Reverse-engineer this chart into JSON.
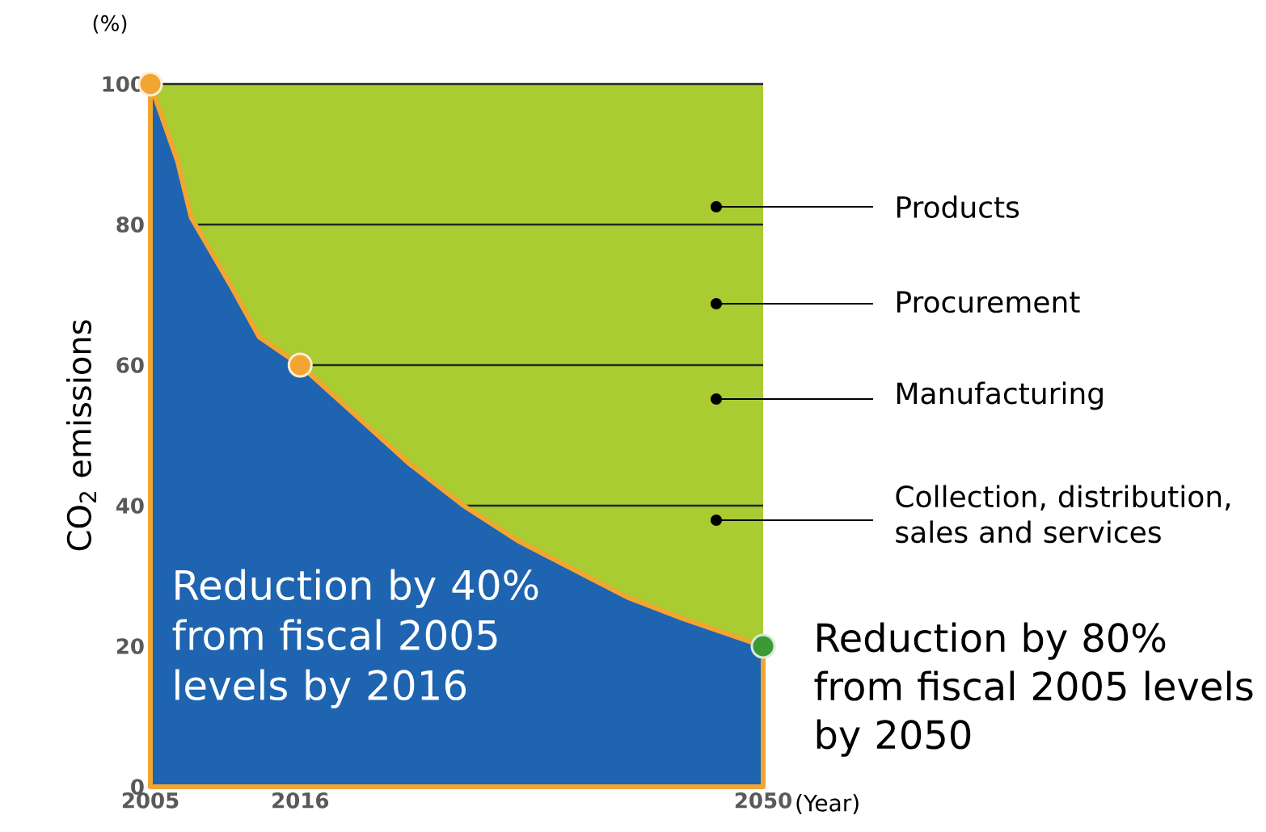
{
  "chart_data": {
    "type": "area",
    "ylabel": "CO$_{2}$ emissions",
    "xlabel": "(Year)",
    "x": [
      2005,
      2007,
      2008,
      2011,
      2013,
      2016,
      2020,
      2024,
      2028,
      2032,
      2036,
      2040,
      2044,
      2050
    ],
    "series": [
      {
        "color": "#1e64b0",
        "values": [
          100,
          89,
          81,
          71,
          64,
          60,
          53,
          46,
          40,
          35,
          31,
          27,
          24,
          20
        ]
      },
      {
        "type": "scatter",
        "x": [
          2005,
          2016,
          2050
        ],
        "values": [
          100,
          60,
          20
        ],
        "colors": [
          "#f2a531",
          "#f2a531",
          "#3c9a35"
        ],
        "marker": "circle"
      }
    ],
    "xlim": [
      2005,
      2050
    ],
    "ylim": [
      0,
      100
    ],
    "xticks": [
      2005,
      2016,
      2050
    ],
    "yticks": [
      0,
      20,
      40,
      60,
      80,
      100
    ],
    "grid": "y",
    "annotations": [
      "(%)",
      "Products",
      "Procurement",
      "Manufacturing",
      "Collection, distribution, sales and services",
      "Reduction by 40% from fiscal 2005 levels by 2016",
      "Reduction by 80% from fiscal 2005 levels by 2050"
    ]
  }
}
